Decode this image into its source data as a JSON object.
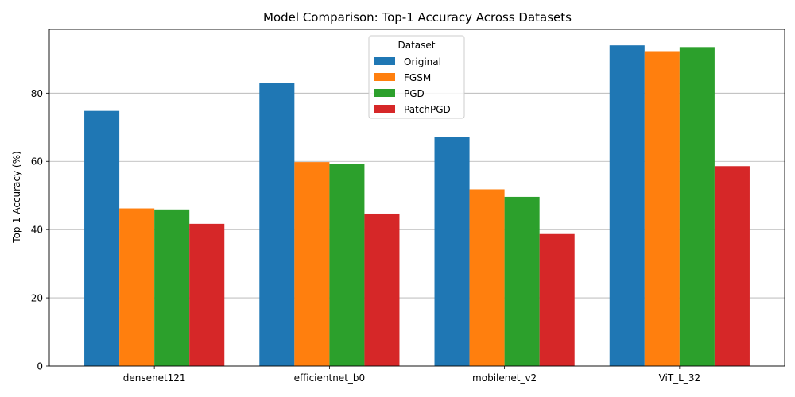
{
  "chart_data": {
    "type": "bar",
    "title": "Model Comparison: Top-1 Accuracy Across Datasets",
    "xlabel": "",
    "ylabel": "Top-1 Accuracy (%)",
    "ylim": [
      0,
      98.7
    ],
    "yticks": [
      0,
      20,
      40,
      60,
      80
    ],
    "grid": "y-axis horizontal lines",
    "legend": {
      "title": "Dataset",
      "placement": "top-center"
    },
    "categories": [
      "densenet121",
      "efficientnet_b0",
      "mobilenet_v2",
      "ViT_L_32"
    ],
    "series": [
      {
        "name": "Original",
        "color": "#1f77b4",
        "values": [
          74.8,
          83.0,
          67.1,
          94.0
        ]
      },
      {
        "name": "FGSM",
        "color": "#ff7f0e",
        "values": [
          46.2,
          59.8,
          51.8,
          92.3
        ]
      },
      {
        "name": "PGD",
        "color": "#2ca02c",
        "values": [
          45.9,
          59.2,
          49.6,
          93.5
        ]
      },
      {
        "name": "PatchPGD",
        "color": "#d62728",
        "values": [
          41.7,
          44.7,
          38.7,
          58.6
        ]
      }
    ]
  }
}
